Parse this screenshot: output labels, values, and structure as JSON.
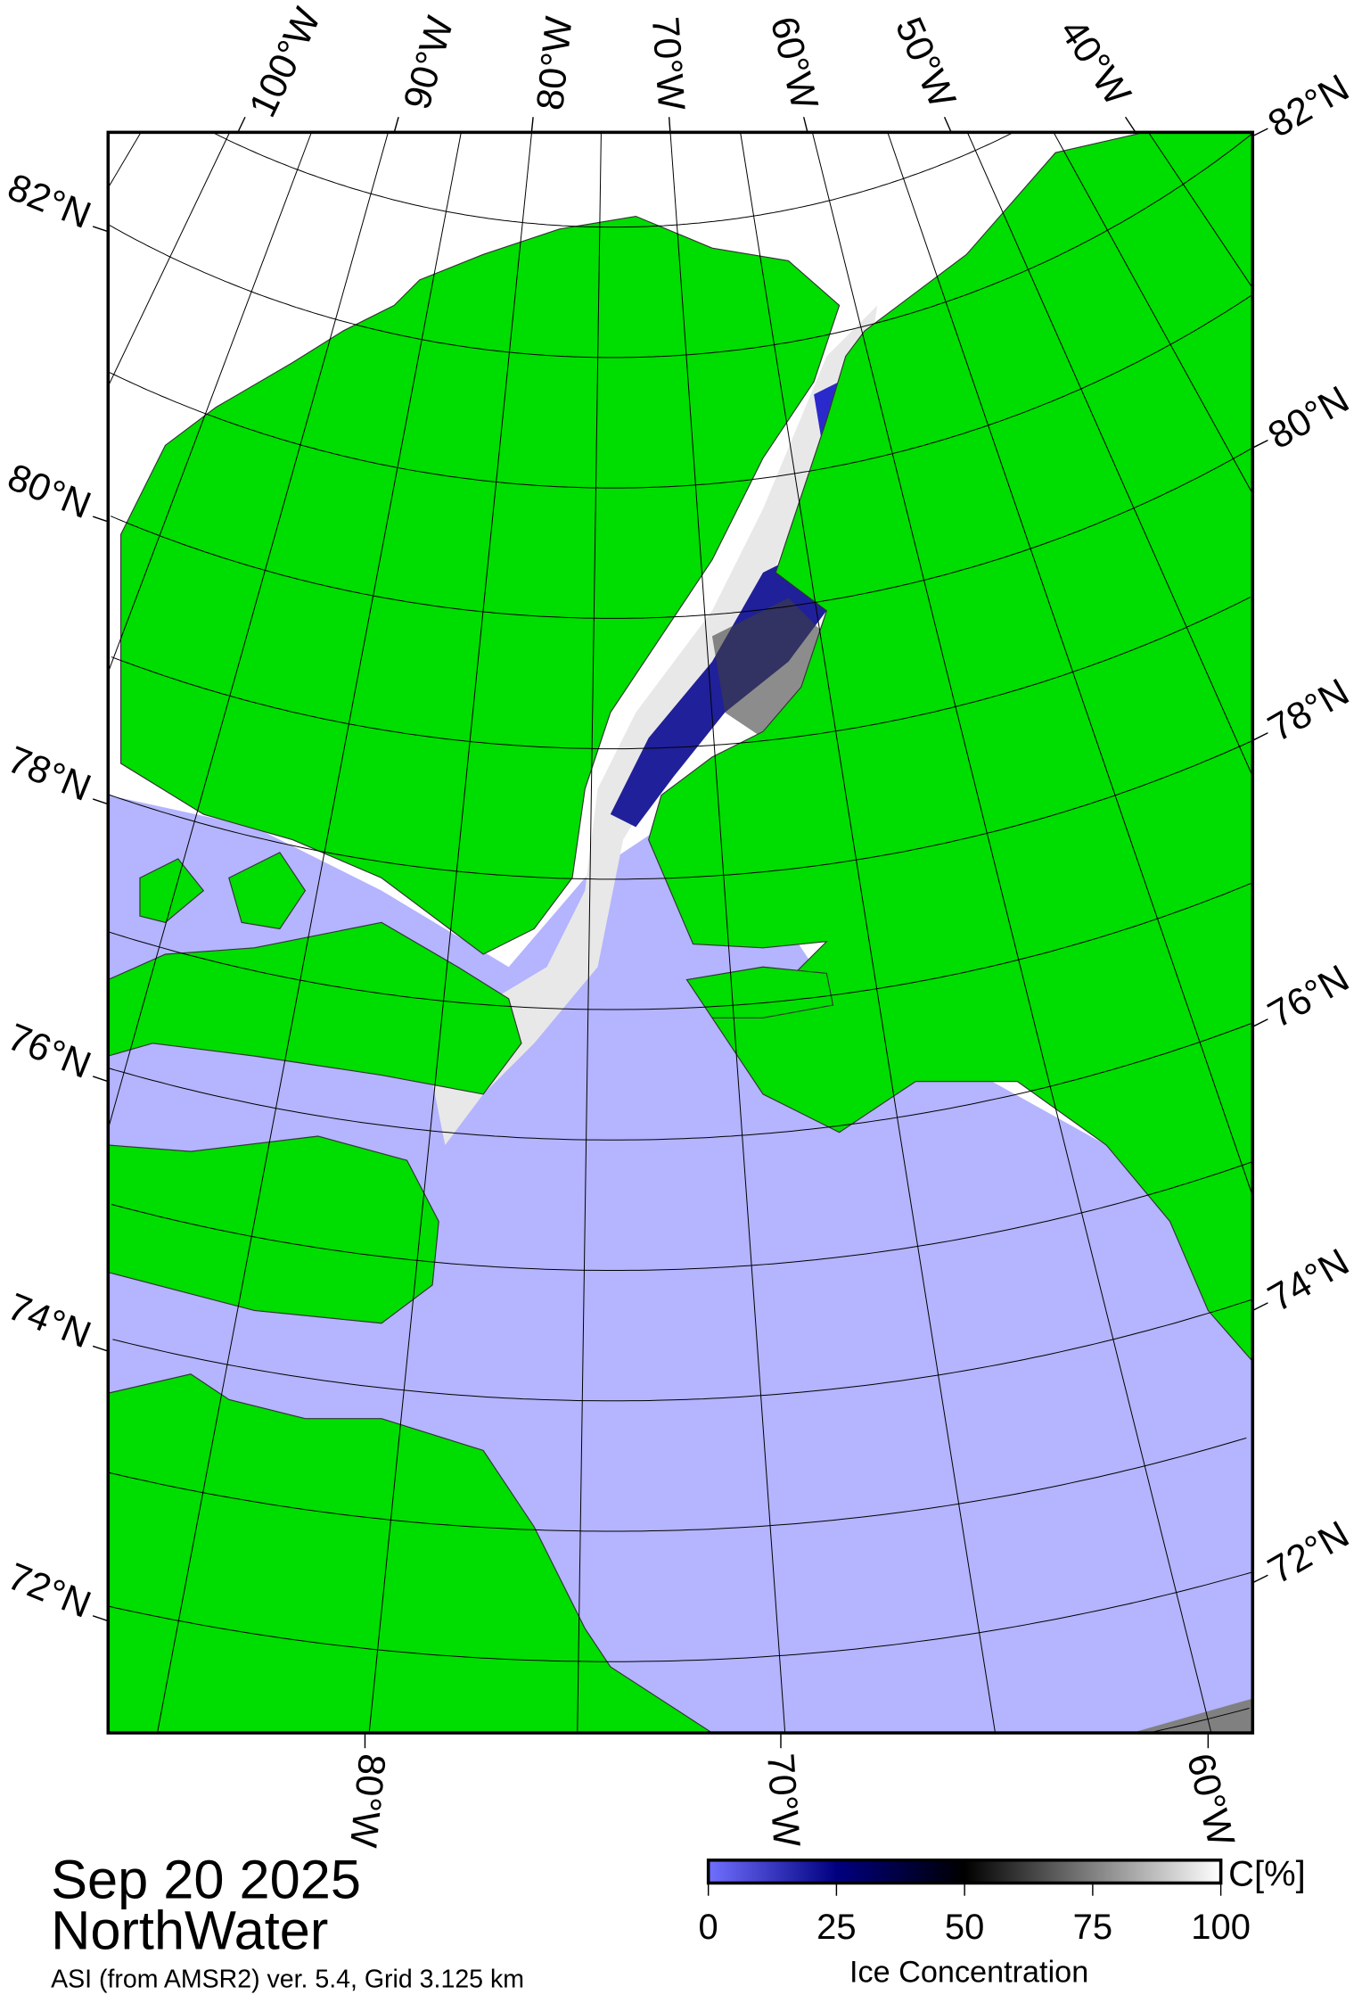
{
  "map": {
    "title_date": "Sep 20 2025",
    "title_region": "NorthWater",
    "subtitle": "ASI (from AMSR2) ver. 5.4,  Grid 3.125 km",
    "colors": {
      "land": "#00dd00",
      "open_water": "#b4b4ff",
      "coast_gray": "#808080",
      "ice_full": "#ffffff",
      "ice_mid": "#000000",
      "ice_low": "#000080"
    },
    "top_lon_labels": [
      "100°W",
      "90°W",
      "80°W",
      "70°W",
      "60°W",
      "50°W",
      "40°W"
    ],
    "bottom_lon_labels": [
      "80°W",
      "70°W",
      "60°W"
    ],
    "left_lat_labels": [
      "82°N",
      "80°N",
      "78°N",
      "76°N",
      "74°N",
      "72°N"
    ],
    "right_lat_labels": [
      "82°N",
      "80°N",
      "78°N",
      "76°N",
      "74°N",
      "72°N"
    ]
  },
  "colorbar": {
    "unit": "C[%]",
    "label": "Ice Concentration",
    "ticks": [
      "0",
      "25",
      "50",
      "75",
      "100"
    ],
    "range": [
      0,
      100
    ],
    "stops": [
      "#7070ff",
      "#000080",
      "#000000",
      "#808080",
      "#ffffff"
    ]
  }
}
